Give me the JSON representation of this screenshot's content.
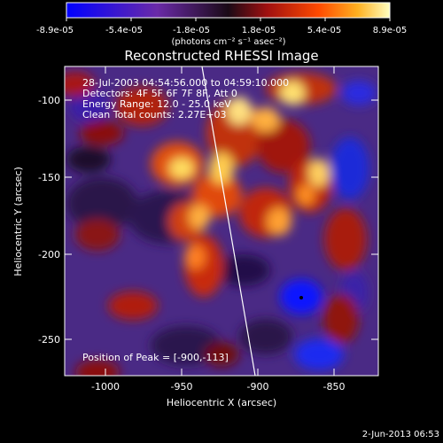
{
  "window": {
    "background": "#000000"
  },
  "colorbar": {
    "tick_labels": [
      "-8.9e-05",
      "-5.4e-05",
      "-1.8e-05",
      "1.8e-05",
      "5.4e-05",
      "8.9e-05"
    ],
    "unit_label": "(photons cm⁻² s⁻¹ asec⁻²)",
    "colors": [
      "#1a1aff",
      "#6a2aa8",
      "#2a1030",
      "#a01010",
      "#ff4000",
      "#ff9f10",
      "#ffff90"
    ]
  },
  "image": {
    "title": "Reconstructed RHESSI Image",
    "info_lines": [
      "28-Jul-2003 04:54:56.000 to 04:59:10.000",
      "Detectors: 4F 5F 6F 7F 8F, Att 0",
      "Energy Range: 12.0 - 25.0 keV",
      "Clean     Total counts: 2.27E+03"
    ],
    "peak_label": "Position of Peak = [-900,-113]",
    "x_axis": {
      "label": "Heliocentric X (arcsec)",
      "ticks": [
        "-1000",
        "-950",
        "-900",
        "-850"
      ]
    },
    "y_axis": {
      "label": "Heliocentric Y (arcsec)",
      "ticks": [
        "-100",
        "-150",
        "-200",
        "-250"
      ]
    }
  },
  "footer": {
    "timestamp": "2-Jun-2013 06:53"
  }
}
